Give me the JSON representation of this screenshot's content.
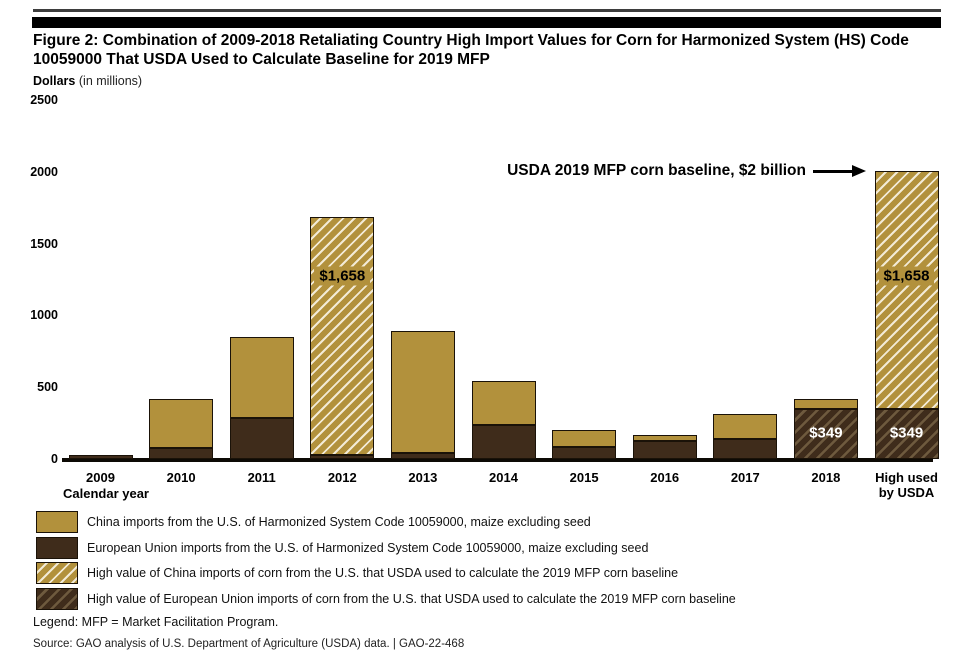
{
  "header": {
    "title": "Figure 2: Combination of 2009-2018 Retaliating Country High Import Values for Corn for Harmonized System (HS) Code\n10059000 That USDA Used to Calculate Baseline for 2019 MFP"
  },
  "y_axis": {
    "title_bold": "Dollars",
    "title_note": "(in millions)"
  },
  "x_axis": {
    "title": "Calendar year"
  },
  "annotation": {
    "text": "USDA 2019 MFP corn baseline, $2 billion"
  },
  "colors": {
    "china_gold": "#b2913c",
    "eu_brown": "#3f2c1b",
    "hatch_on_gold": "#f2ead5",
    "hatch_on_brown": "#6e5a3e",
    "bar_border": "#1a1208",
    "axis_black": "#000000"
  },
  "chart_data": {
    "type": "bar",
    "stacked": true,
    "title": "Figure 2: Combination of 2009-2018 Retaliating Country High Import Values for Corn for Harmonized System (HS) Code 10059000 That USDA Used to Calculate Baseline for 2019 MFP",
    "ylabel": "Dollars (in millions)",
    "xlabel": "Calendar year",
    "ylim": [
      0,
      2500
    ],
    "yticks": [
      0,
      500,
      1000,
      1500,
      2000,
      2500
    ],
    "grid": false,
    "legend_position": "bottom",
    "categories": [
      "2009",
      "2010",
      "2011",
      "2012",
      "2013",
      "2014",
      "2015",
      "2016",
      "2017",
      "2018",
      "High used\nby USDA"
    ],
    "series": [
      {
        "key": "eu_solid",
        "name": "European Union imports from the U.S. of Harmonized System Code 10059000, maize excluding seed",
        "values": [
          30,
          75,
          285,
          25,
          45,
          240,
          80,
          125,
          140,
          0,
          0
        ]
      },
      {
        "key": "eu_hatch",
        "name": "High value of European Union imports of corn from the U.S. that USDA used to calculate the 2019 MFP corn baseline",
        "values": [
          0,
          0,
          0,
          0,
          0,
          0,
          0,
          0,
          0,
          349,
          349
        ]
      },
      {
        "key": "china_solid",
        "name": "China imports from the U.S. of Harmonized System Code 10059000, maize excluding seed",
        "values": [
          0,
          345,
          565,
          0,
          845,
          300,
          125,
          45,
          175,
          71,
          0
        ]
      },
      {
        "key": "china_hatch",
        "name": "High value of China imports of corn from the U.S. that USDA used to calculate the 2019 MFP corn baseline",
        "values": [
          0,
          0,
          0,
          1658,
          0,
          0,
          0,
          0,
          0,
          0,
          1658
        ]
      }
    ],
    "segment_labels": [
      {
        "bar": 3,
        "text": "$1,658",
        "style": "dark-on-gold",
        "center_value": 1275
      },
      {
        "bar": 9,
        "text": "$349",
        "style": "white-on-brown",
        "center_value": 180
      },
      {
        "bar": 10,
        "text": "$1,658",
        "style": "dark-on-gold",
        "center_value": 1275
      },
      {
        "bar": 10,
        "text": "$349",
        "style": "white-on-brown",
        "center_value": 180
      }
    ],
    "annotation": "USDA 2019 MFP corn baseline, $2 billion"
  },
  "legend": {
    "items": [
      {
        "swatch": "china_solid",
        "label": "China imports from the U.S. of Harmonized System Code 10059000, maize excluding seed"
      },
      {
        "swatch": "eu_solid",
        "label": "European Union imports from the U.S. of Harmonized System Code 10059000, maize excluding seed"
      },
      {
        "swatch": "china_hatch",
        "label": "High value of China imports of corn from the U.S. that USDA used to calculate the 2019 MFP corn baseline"
      },
      {
        "swatch": "eu_hatch",
        "label": "High value of European Union imports of corn from the U.S. that USDA used to calculate the 2019 MFP corn baseline"
      }
    ]
  },
  "footer": {
    "legend_note": "Legend: MFP = Market Facilitation Program.",
    "source": "Source: GAO analysis of U.S. Department of Agriculture (USDA) data.  |  GAO-22-468"
  }
}
